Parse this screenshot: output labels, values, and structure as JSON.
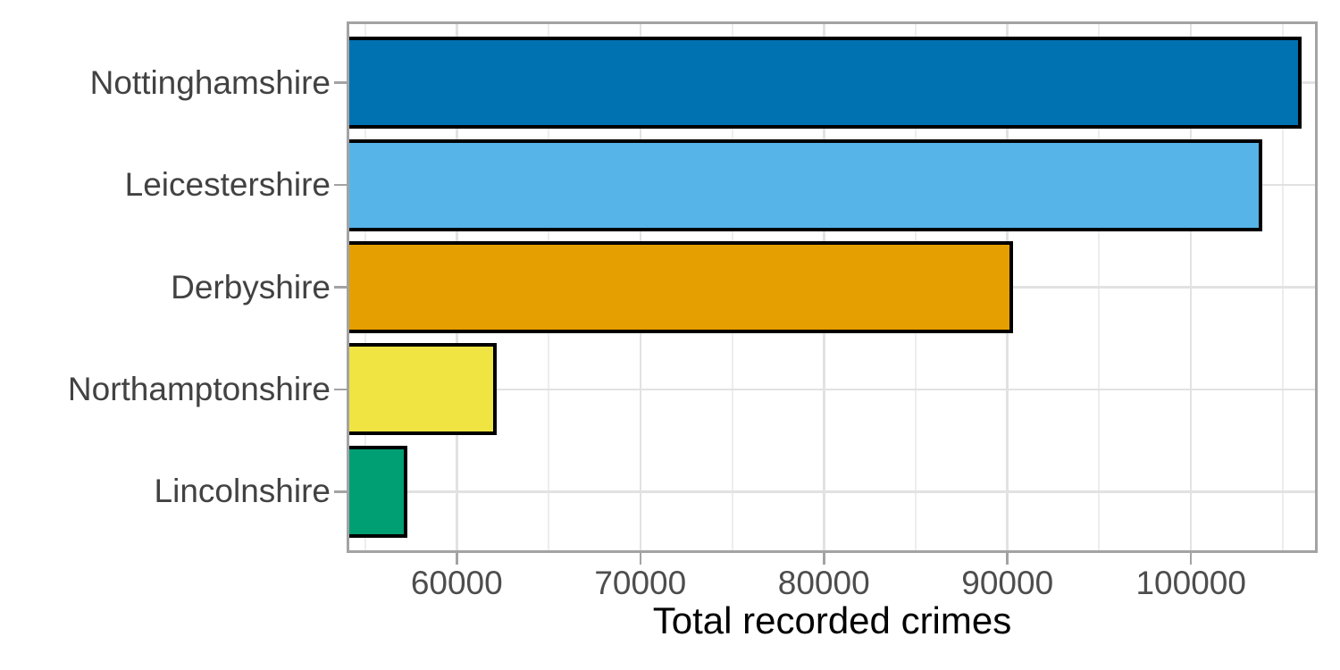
{
  "chart_data": {
    "type": "bar",
    "orientation": "horizontal",
    "title": "",
    "xlabel": "Total recorded crimes",
    "ylabel": "",
    "categories": [
      "Nottinghamshire",
      "Leicestershire",
      "Derbyshire",
      "Northamptonshire",
      "Lincolnshire"
    ],
    "values": [
      106000,
      103900,
      90300,
      62200,
      57300
    ],
    "bar_colors": [
      "#0072B2",
      "#56B4E9",
      "#E69F00",
      "#F0E442",
      "#009E73"
    ],
    "bar_outline_color": "#000000",
    "xlim": [
      54000,
      106900
    ],
    "x_major_ticks": [
      60000,
      70000,
      80000,
      90000,
      100000
    ],
    "x_tick_labels": [
      "60000",
      "70000",
      "80000",
      "90000",
      "100000"
    ],
    "x_minor_ticks": [
      55000,
      65000,
      75000,
      85000,
      95000,
      105000
    ],
    "grid": {
      "vertical_major": true,
      "vertical_minor": true,
      "horizontal_major_at_category_centers": true
    },
    "legend": "none",
    "bars_clipped_at_axis_min": true
  }
}
